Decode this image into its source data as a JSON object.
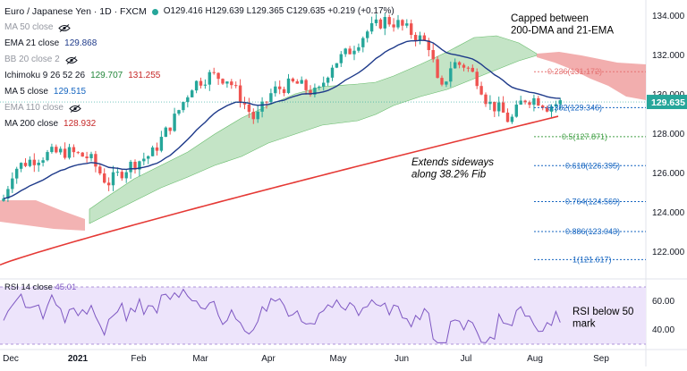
{
  "header": {
    "title": "Euro / Japanese Yen · 1D · FXCM",
    "ohlc": "O129.416  H129.639  L129.365  C129.635  +0.219  (+0.17%)"
  },
  "indicators": [
    {
      "label": "MA 50 close",
      "value": "",
      "hidden": true
    },
    {
      "label": "EMA 21 close",
      "value": "129.868",
      "color": "#1e3a8a"
    },
    {
      "label": "BB 20 close 2",
      "value": "",
      "hidden": true
    },
    {
      "label": "Ichimoku 9 26 52 26",
      "value": "129.707",
      "value2": "131.255",
      "color": "#22863a",
      "color2": "#c62828"
    },
    {
      "label": "MA 5 close",
      "value": "129.515",
      "color": "#1565c0"
    },
    {
      "label": "EMA 110 close",
      "value": "",
      "hidden": true
    },
    {
      "label": "MA 200 close",
      "value": "128.932",
      "color": "#c62828"
    }
  ],
  "annotations": {
    "capped": "Capped between\n200-DMA and 21-EMA",
    "extends": "Extends sideways\nalong 38.2% Fib",
    "rsi_note": "RSI below 50\nmark"
  },
  "price_axis": {
    "labels": [
      "134.000",
      "132.000",
      "130.000",
      "128.000",
      "126.000",
      "124.000",
      "122.000"
    ],
    "current": "129.635"
  },
  "fib_levels": [
    {
      "ratio": "0.236",
      "price": "131.172",
      "color": "#e57373"
    },
    {
      "ratio": "0.382",
      "price": "129.346",
      "color": "#1565c0"
    },
    {
      "ratio": "0.5",
      "price": "127.871",
      "color": "#43a047"
    },
    {
      "ratio": "0.618",
      "price": "126.395",
      "color": "#1565c0"
    },
    {
      "ratio": "0.764",
      "price": "124.569",
      "color": "#1565c0"
    },
    {
      "ratio": "0.886",
      "price": "123.043",
      "color": "#1565c0"
    },
    {
      "ratio": "1",
      "price": "121.617",
      "color": "#1565c0"
    }
  ],
  "rsi": {
    "label": "RSI 14 close",
    "value": "45.01",
    "axis_labels": [
      "60.00",
      "40.00"
    ]
  },
  "time_axis": [
    "Dec",
    "2021",
    "Feb",
    "Mar",
    "Apr",
    "May",
    "Jun",
    "Jul",
    "Aug",
    "Sep"
  ],
  "colors": {
    "up": "#26a69a",
    "down": "#ef5350",
    "ema21": "#1e3a8a",
    "ma200": "#e53935",
    "cloud_bull": "#a5d6a7",
    "cloud_bear": "#ef9a9a",
    "rsi_line": "#7e57c2",
    "rsi_band": "#ede4fb"
  }
}
